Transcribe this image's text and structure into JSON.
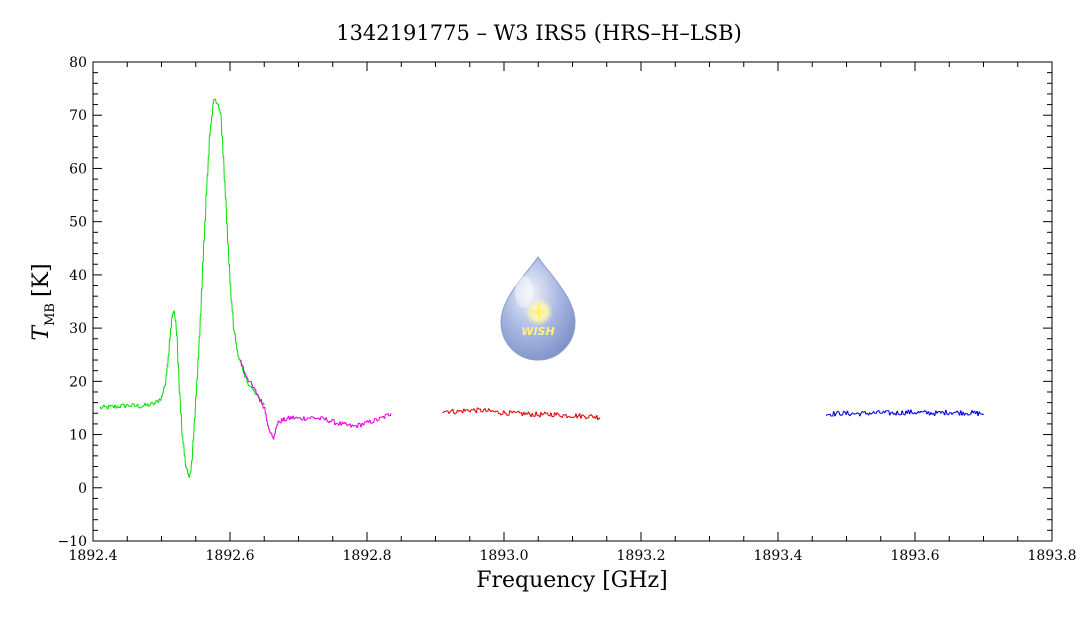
{
  "chart_data": {
    "type": "line",
    "title": "1342191775 – W3 IRS5 (HRS–H–LSB)",
    "xlabel": "Frequency [GHz]",
    "ylabel": {
      "symbol": "T",
      "subscript": "MB",
      "unit": "[K]"
    },
    "xlim": [
      1892.4,
      1893.8
    ],
    "ylim": [
      -10,
      80
    ],
    "xticks": [
      1892.4,
      1892.6,
      1892.8,
      1893.0,
      1893.2,
      1893.4,
      1893.6,
      1893.8
    ],
    "xtick_labels": [
      "1892.4",
      "1892.6",
      "1892.8",
      "1893.0",
      "1893.2",
      "1893.4",
      "1893.6",
      "1893.8"
    ],
    "yticks": [
      -10,
      0,
      10,
      20,
      30,
      40,
      50,
      60,
      70,
      80
    ],
    "ytick_labels": [
      "−10",
      "0",
      "10",
      "20",
      "30",
      "40",
      "50",
      "60",
      "70",
      "80"
    ],
    "grid": false,
    "legend": "none",
    "series": [
      {
        "color": "#00e000",
        "points": [
          [
            1892.41,
            15.0
          ],
          [
            1892.43,
            15.2
          ],
          [
            1892.45,
            15.5
          ],
          [
            1892.47,
            15.3
          ],
          [
            1892.49,
            15.8
          ],
          [
            1892.5,
            17.0
          ],
          [
            1892.505,
            19.5
          ],
          [
            1892.51,
            25.0
          ],
          [
            1892.515,
            32.5
          ],
          [
            1892.518,
            33.5
          ],
          [
            1892.522,
            29.0
          ],
          [
            1892.526,
            18.0
          ],
          [
            1892.53,
            10.0
          ],
          [
            1892.535,
            4.0
          ],
          [
            1892.54,
            1.8
          ],
          [
            1892.544,
            5.0
          ],
          [
            1892.55,
            17.0
          ],
          [
            1892.555,
            28.0
          ],
          [
            1892.56,
            42.0
          ],
          [
            1892.565,
            55.0
          ],
          [
            1892.57,
            66.0
          ],
          [
            1892.575,
            72.0
          ],
          [
            1892.578,
            73.0
          ],
          [
            1892.582,
            72.0
          ],
          [
            1892.586,
            70.0
          ],
          [
            1892.59,
            62.0
          ],
          [
            1892.595,
            50.0
          ],
          [
            1892.6,
            38.0
          ],
          [
            1892.605,
            30.0
          ],
          [
            1892.61,
            26.0
          ],
          [
            1892.62,
            21.0
          ],
          [
            1892.63,
            19.0
          ],
          [
            1892.64,
            17.0
          ],
          [
            1892.65,
            15.5
          ]
        ]
      },
      {
        "color": "#e000e0",
        "points": [
          [
            1892.615,
            24.0
          ],
          [
            1892.62,
            22.0
          ],
          [
            1892.63,
            19.5
          ],
          [
            1892.64,
            17.5
          ],
          [
            1892.65,
            15.0
          ],
          [
            1892.655,
            12.0
          ],
          [
            1892.66,
            10.0
          ],
          [
            1892.663,
            9.0
          ],
          [
            1892.667,
            11.5
          ],
          [
            1892.672,
            12.5
          ],
          [
            1892.68,
            12.8
          ],
          [
            1892.69,
            13.2
          ],
          [
            1892.7,
            13.0
          ],
          [
            1892.72,
            13.2
          ],
          [
            1892.74,
            12.8
          ],
          [
            1892.76,
            12.0
          ],
          [
            1892.78,
            11.5
          ],
          [
            1892.8,
            12.2
          ],
          [
            1892.82,
            13.0
          ],
          [
            1892.835,
            14.0
          ]
        ]
      },
      {
        "color": "#e00000",
        "points": [
          [
            1892.91,
            14.5
          ],
          [
            1892.93,
            14.3
          ],
          [
            1892.95,
            14.6
          ],
          [
            1892.97,
            14.5
          ],
          [
            1892.99,
            14.2
          ],
          [
            1893.01,
            14.0
          ],
          [
            1893.03,
            13.9
          ],
          [
            1893.05,
            13.7
          ],
          [
            1893.07,
            13.8
          ],
          [
            1893.09,
            13.6
          ],
          [
            1893.11,
            13.5
          ],
          [
            1893.13,
            13.4
          ],
          [
            1893.14,
            13.2
          ]
        ]
      },
      {
        "color": "#0000e0",
        "points": [
          [
            1893.47,
            13.8
          ],
          [
            1893.49,
            14.0
          ],
          [
            1893.51,
            13.9
          ],
          [
            1893.53,
            14.0
          ],
          [
            1893.55,
            14.1
          ],
          [
            1893.57,
            14.0
          ],
          [
            1893.59,
            14.2
          ],
          [
            1893.61,
            14.1
          ],
          [
            1893.63,
            14.0
          ],
          [
            1893.65,
            14.2
          ],
          [
            1893.67,
            14.1
          ],
          [
            1893.69,
            14.0
          ],
          [
            1893.7,
            13.9
          ]
        ]
      }
    ],
    "logo": {
      "text": "WISH",
      "colors": {
        "drop_light": "#d6def4",
        "drop_dark": "#7f92c8",
        "star": "#fff27a"
      }
    }
  }
}
